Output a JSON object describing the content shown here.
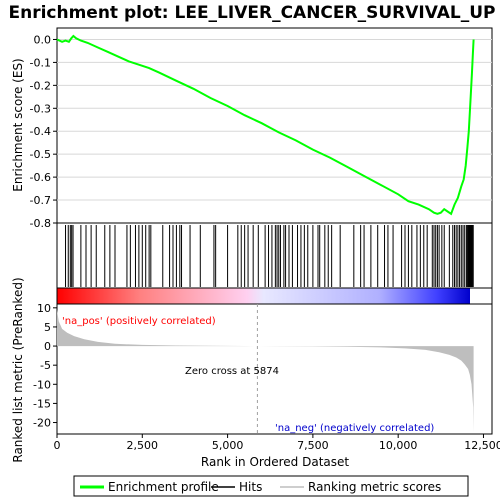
{
  "title": "Enrichment plot: LEE_LIVER_CANCER_SURVIVAL_UP",
  "colors": {
    "es_line": "#00ff00",
    "hits": "#000000",
    "metric_fill": "#bebebe",
    "pos_label": "#ff0000",
    "neg_label": "#0000cc",
    "zero_line": "#a0a0a0"
  },
  "legend": {
    "items": [
      {
        "label": "Enrichment profile",
        "color": "#00ff00",
        "kind": "line"
      },
      {
        "label": "Hits",
        "color": "#000000",
        "kind": "line"
      },
      {
        "label": "Ranking metric scores",
        "color": "#bebebe",
        "kind": "line"
      }
    ]
  },
  "annotations": {
    "pos_label": "'na_pos' (positively correlated)",
    "neg_label": "'na_neg' (negatively correlated)",
    "zero_cross": "Zero cross at 5874"
  },
  "chart_data": [
    {
      "type": "line",
      "name": "enrichment",
      "ylabel": "Enrichment score (ES)",
      "xlim": [
        0,
        12750
      ],
      "ylim": [
        -0.8,
        0.05
      ],
      "yticks": [
        0.0,
        -0.1,
        -0.2,
        -0.3,
        -0.4,
        -0.5,
        -0.6,
        -0.7,
        -0.8
      ],
      "ytick_labels": [
        "0.0",
        "-0.1",
        "-0.2",
        "-0.3",
        "-0.4",
        "-0.5",
        "-0.6",
        "-0.7",
        "-0.8"
      ],
      "grid": true,
      "series": [
        {
          "x": [
            0,
            150,
            250,
            350,
            420,
            480,
            560,
            700,
            900,
            1200,
            1500,
            1800,
            2100,
            2400,
            2700,
            3000,
            3500,
            4000,
            4500,
            5000,
            5500,
            6000,
            6500,
            7000,
            7500,
            8000,
            8500,
            9000,
            9500,
            10000,
            10300,
            10600,
            10900,
            11050,
            11150,
            11250,
            11350,
            11450,
            11550,
            11650,
            11750,
            11850,
            11920,
            11980,
            12030,
            12070,
            12100,
            12130,
            12160,
            12190,
            12210
          ],
          "y": [
            0.0,
            -0.01,
            -0.005,
            -0.01,
            0.005,
            0.015,
            0.005,
            -0.005,
            -0.015,
            -0.035,
            -0.055,
            -0.075,
            -0.095,
            -0.11,
            -0.125,
            -0.145,
            -0.18,
            -0.215,
            -0.255,
            -0.29,
            -0.33,
            -0.365,
            -0.405,
            -0.44,
            -0.48,
            -0.515,
            -0.555,
            -0.595,
            -0.635,
            -0.675,
            -0.705,
            -0.72,
            -0.74,
            -0.755,
            -0.76,
            -0.755,
            -0.74,
            -0.75,
            -0.76,
            -0.72,
            -0.69,
            -0.64,
            -0.61,
            -0.55,
            -0.47,
            -0.4,
            -0.32,
            -0.24,
            -0.15,
            -0.06,
            0.0
          ]
        }
      ]
    },
    {
      "type": "scatter",
      "name": "hits",
      "xlim": [
        0,
        12750
      ],
      "hit_positions": [
        250,
        330,
        390,
        430,
        470,
        700,
        850,
        1000,
        1150,
        1400,
        1550,
        1700,
        2050,
        2150,
        2300,
        2400,
        2500,
        2600,
        2700,
        2750,
        3100,
        3300,
        3400,
        3500,
        3600,
        3650,
        3900,
        4200,
        4600,
        4650,
        5000,
        5300,
        5400,
        5500,
        5600,
        5750,
        5900,
        6100,
        6200,
        6300,
        6400,
        6450,
        6500,
        6550,
        6650,
        6700,
        6800,
        6900,
        7050,
        7150,
        7250,
        7350,
        7500,
        7650,
        7700,
        7850,
        7950,
        8050,
        8300,
        8700,
        8900,
        9000,
        9200,
        9400,
        9600,
        9700,
        9850,
        10100,
        10200,
        10300,
        10400,
        10550,
        10650,
        10750,
        10850,
        11000,
        11050,
        11100,
        11150,
        11200,
        11280,
        11350,
        11500,
        11600,
        11650,
        11700,
        11750,
        11800,
        11850,
        11900,
        11950,
        12000,
        12030,
        12060,
        12080,
        12100,
        12120,
        12140,
        12160,
        12180,
        12200
      ]
    },
    {
      "type": "area",
      "name": "ranked_metric",
      "xlabel": "Rank in Ordered Dataset",
      "ylabel": "Ranked list metric (PreRanked)",
      "xlim": [
        0,
        12750
      ],
      "ylim": [
        -23,
        11
      ],
      "xticks": [
        0,
        2500,
        5000,
        7500,
        10000,
        12500
      ],
      "xtick_labels": [
        "0",
        "2,500",
        "5,000",
        "7,500",
        "10,000",
        "12,500"
      ],
      "yticks": [
        10,
        5,
        0,
        -5,
        -10,
        -15,
        -20
      ],
      "ytick_labels": [
        "10",
        "5",
        "0",
        "-5",
        "-10",
        "-15",
        "-20"
      ],
      "zero_cross": 5874,
      "series": [
        {
          "x": [
            0,
            50,
            150,
            300,
            500,
            800,
            1200,
            1700,
            2500,
            3500,
            4500,
            5500,
            5874,
            6500,
            7500,
            8500,
            9500,
            10200,
            10800,
            11200,
            11500,
            11700,
            11850,
            11950,
            12050,
            12100,
            12150,
            12200,
            12210
          ],
          "y": [
            9.5,
            6.5,
            4.5,
            3.5,
            2.6,
            1.8,
            1.1,
            0.6,
            0.3,
            0.15,
            0.06,
            0.01,
            0.0,
            -0.05,
            -0.1,
            -0.2,
            -0.35,
            -0.6,
            -1.0,
            -1.6,
            -2.3,
            -3.0,
            -3.8,
            -4.8,
            -6.0,
            -7.5,
            -10.0,
            -16.0,
            -22.5
          ]
        }
      ]
    }
  ]
}
